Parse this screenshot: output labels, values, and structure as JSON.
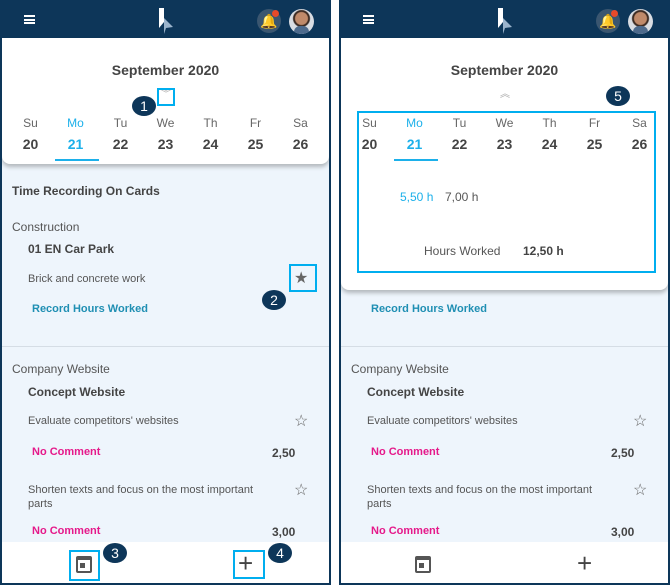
{
  "header": {
    "menu_icon": "hamburger-icon",
    "logo_icon": "app-logo",
    "bell_icon": "bell-icon",
    "avatar": "user-avatar"
  },
  "calendar": {
    "month": "September 2020",
    "days": [
      {
        "name": "Su",
        "date": "20"
      },
      {
        "name": "Mo",
        "date": "21"
      },
      {
        "name": "Tu",
        "date": "22"
      },
      {
        "name": "We",
        "date": "23"
      },
      {
        "name": "Th",
        "date": "24"
      },
      {
        "name": "Fr",
        "date": "25"
      },
      {
        "name": "Sa",
        "date": "26"
      }
    ],
    "selected": "Mo",
    "expanded": {
      "hours_mo": "5,50 h",
      "hours_tu": "7,00 h",
      "total_label": "Hours Worked",
      "total_value": "12,50 h"
    }
  },
  "content": {
    "section_title": "Time Recording On Cards",
    "group1": {
      "name": "Construction",
      "project": "01 EN Car Park",
      "task": "Brick and concrete work",
      "action": "Record Hours Worked"
    },
    "group2": {
      "name": "Company Website",
      "project": "Concept Website",
      "tasks": [
        {
          "label": "Evaluate competitors' websites",
          "comment": "No Comment",
          "hours": "2,50"
        },
        {
          "label_line1": "Shorten texts and focus on the most important",
          "label_line2": "parts",
          "comment": "No Comment",
          "hours": "3,00"
        }
      ]
    }
  },
  "footer": {
    "calendar_icon": "calendar-icon",
    "add_icon": "plus-icon"
  },
  "annotations": [
    "1",
    "2",
    "3",
    "4",
    "5"
  ],
  "colors": {
    "header": "#0d3659",
    "accent": "#1cb0ea",
    "link": "#1f8fb3",
    "comment": "#e5198a",
    "highlight": "#00aeef"
  }
}
